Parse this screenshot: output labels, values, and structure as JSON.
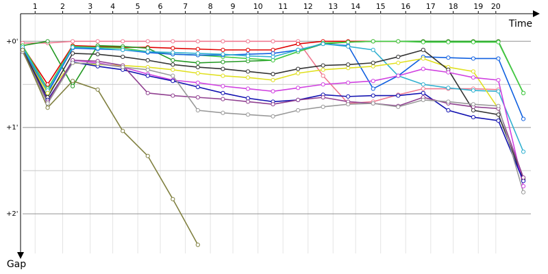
{
  "chart_data": {
    "type": "line",
    "x_label": "Time",
    "y_label": "Gap",
    "x": [
      1,
      2,
      3,
      4,
      5,
      6,
      7,
      8,
      9,
      10,
      11,
      12,
      13,
      14,
      15,
      16,
      17,
      18,
      19,
      20,
      21
    ],
    "xlim": [
      1,
      21.3
    ],
    "xticks": [
      {
        "value": 1.5,
        "label": "1"
      },
      {
        "value": 2.6,
        "label": "2"
      },
      {
        "value": 3.7,
        "label": "3"
      },
      {
        "value": 4.6,
        "label": "4"
      },
      {
        "value": 5.6,
        "label": "5"
      },
      {
        "value": 6.5,
        "label": "6"
      },
      {
        "value": 7.5,
        "label": "7"
      },
      {
        "value": 8.5,
        "label": "8"
      },
      {
        "value": 9.4,
        "label": "9"
      },
      {
        "value": 10.4,
        "label": "10"
      },
      {
        "value": 11.4,
        "label": "11"
      },
      {
        "value": 12.4,
        "label": "12"
      },
      {
        "value": 13.4,
        "label": "13"
      },
      {
        "value": 14.3,
        "label": "14"
      },
      {
        "value": 15.3,
        "label": "15"
      },
      {
        "value": 16.3,
        "label": "16"
      },
      {
        "value": 17.3,
        "label": "17"
      },
      {
        "value": 18.2,
        "label": "18"
      },
      {
        "value": 19.2,
        "label": "19"
      },
      {
        "value": 19.9,
        "label": "20"
      }
    ],
    "ylim": [
      -0.32,
      2.46
    ],
    "yticks": [
      {
        "value": 0,
        "label": "+0'"
      },
      {
        "value": 1,
        "label": "+1'"
      },
      {
        "value": 2,
        "label": "+2'"
      }
    ],
    "yminor": [
      0.5,
      1.5
    ],
    "y_inverted": true,
    "grid": true,
    "series": [
      {
        "color": "#f07890",
        "values": [
          0.02,
          0.02,
          0,
          0,
          0,
          0,
          0,
          0,
          0,
          0,
          0,
          0,
          0.4,
          0.72,
          0.7,
          0.62,
          0.55,
          0.55,
          0.55,
          0.56,
          null
        ]
      },
      {
        "color": "#e00000",
        "values": [
          0.06,
          0.5,
          0.05,
          0.06,
          0.07,
          0.07,
          0.08,
          0.09,
          0.1,
          0.1,
          0.1,
          0.03,
          0,
          0,
          0,
          0,
          0,
          0,
          0,
          0,
          null
        ]
      },
      {
        "color": "#229922",
        "values": [
          0.05,
          0,
          0.52,
          0.05,
          0.06,
          0.08,
          0.22,
          0.25,
          0.24,
          0.23,
          0.22,
          0.12,
          0.03,
          0.01,
          0,
          0,
          0,
          0,
          0,
          0,
          0.6
        ]
      },
      {
        "color": "#44cc44",
        "values": [
          0.05,
          0.55,
          0.06,
          0.07,
          0.08,
          0.12,
          0.15,
          0.16,
          0.18,
          0.2,
          0.22,
          0.12,
          0.02,
          0.01,
          0,
          0,
          0.01,
          0.01,
          0.01,
          0.01,
          0.6
        ]
      },
      {
        "color": "#1060e0",
        "values": [
          0.08,
          0.6,
          0.08,
          0.09,
          0.1,
          0.13,
          0.15,
          0.16,
          0.16,
          0.15,
          0.14,
          0.1,
          0.03,
          0.05,
          0.55,
          0.4,
          0.18,
          0.19,
          0.2,
          0.2,
          0.9
        ]
      },
      {
        "color": "#30b0d0",
        "values": [
          0.07,
          0.57,
          0.07,
          0.08,
          0.1,
          0.12,
          0.13,
          0.14,
          0.15,
          0.17,
          0.18,
          0.1,
          0.03,
          0.06,
          0.1,
          0.4,
          0.5,
          0.54,
          0.57,
          0.58,
          1.28
        ]
      },
      {
        "color": "#e0e020",
        "values": [
          0.12,
          0.6,
          0.25,
          0.27,
          0.28,
          0.3,
          0.33,
          0.37,
          0.4,
          0.42,
          0.45,
          0.37,
          0.33,
          0.31,
          0.29,
          0.25,
          0.2,
          0.3,
          0.35,
          0.78,
          null
        ]
      },
      {
        "color": "#333333",
        "values": [
          0.1,
          0.65,
          0.14,
          0.15,
          0.18,
          0.22,
          0.27,
          0.3,
          0.32,
          0.35,
          0.38,
          0.32,
          0.28,
          0.27,
          0.25,
          0.18,
          0.1,
          0.33,
          0.8,
          0.85,
          1.6
        ]
      },
      {
        "color": "#d040e0",
        "values": [
          0.12,
          0.7,
          0.22,
          0.25,
          0.3,
          0.38,
          0.45,
          0.48,
          0.52,
          0.55,
          0.58,
          0.54,
          0.5,
          0.48,
          0.46,
          0.4,
          0.32,
          0.36,
          0.42,
          0.45,
          1.68
        ]
      },
      {
        "color": "#1010b0",
        "values": [
          0.12,
          0.68,
          0.24,
          0.29,
          0.33,
          0.4,
          0.46,
          0.53,
          0.6,
          0.66,
          0.7,
          0.68,
          0.62,
          0.64,
          0.63,
          0.63,
          0.6,
          0.8,
          0.88,
          0.92,
          1.62
        ]
      },
      {
        "color": "#904090",
        "values": [
          0.12,
          0.7,
          0.22,
          0.23,
          0.28,
          0.6,
          0.63,
          0.65,
          0.67,
          0.7,
          0.73,
          0.68,
          0.65,
          0.7,
          0.72,
          0.75,
          0.65,
          0.72,
          0.76,
          0.78,
          1.58
        ]
      },
      {
        "color": "#999999",
        "values": [
          0.12,
          0.72,
          0.25,
          0.26,
          0.3,
          0.33,
          0.4,
          0.8,
          0.83,
          0.85,
          0.87,
          0.8,
          0.76,
          0.73,
          0.72,
          0.76,
          0.68,
          0.7,
          0.73,
          0.75,
          1.75
        ]
      },
      {
        "color": "#808040",
        "values": [
          0.1,
          0.77,
          0.46,
          0.56,
          1.04,
          1.33,
          1.83,
          2.36,
          null,
          null,
          null,
          null,
          null,
          null,
          null,
          null,
          null,
          null,
          null,
          null,
          null
        ]
      }
    ]
  }
}
